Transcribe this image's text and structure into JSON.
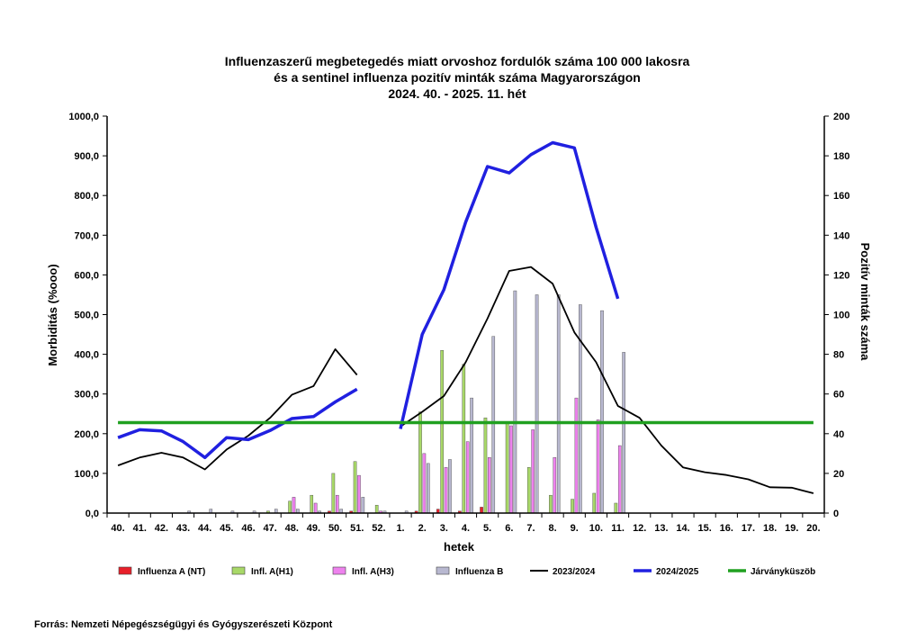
{
  "source": "Forrás: Nemzeti Népegészségügyi és Gyógyszerészeti Központ",
  "colors": {
    "flu_a_nt": "#e8202a",
    "h1": "#a8d868",
    "h3": "#ee82ee",
    "flu_b": "#b8b8d0",
    "s2023": "#000000",
    "s2024": "#2020e0",
    "threshold": "#20a020"
  },
  "chart_data": {
    "type": "bar+line",
    "title_lines": [
      "Influenzaszerű megbetegedés miatt orvoshoz fordulók száma 100 000 lakosra",
      "és a sentinel influenza pozitív minták száma Magyarországon",
      "2024. 40. - 2025. 11. hét"
    ],
    "xlabel": "hetek",
    "ylabel": "Morbiditás (%ooo)",
    "y2label": "Pozitív minták száma",
    "ylim": [
      0,
      1000
    ],
    "y2lim": [
      0,
      200
    ],
    "yticks": [
      "0,0",
      "100,0",
      "200,0",
      "300,0",
      "400,0",
      "500,0",
      "600,0",
      "700,0",
      "800,0",
      "900,0",
      "1000,0"
    ],
    "y2ticks": [
      "0",
      "20",
      "40",
      "60",
      "80",
      "100",
      "120",
      "140",
      "160",
      "180",
      "200"
    ],
    "categories": [
      "40.",
      "41.",
      "42.",
      "43.",
      "44.",
      "45.",
      "46.",
      "47.",
      "48.",
      "49.",
      "50.",
      "51.",
      "52.",
      "1.",
      "2.",
      "3.",
      "4.",
      "5.",
      "6.",
      "7.",
      "8.",
      "9.",
      "10.",
      "11.",
      "12.",
      "13.",
      "14.",
      "15.",
      "16.",
      "17.",
      "18.",
      "19.",
      "20."
    ],
    "bar_series": [
      {
        "key": "flu_a_nt",
        "name": "Influenza A (NT)",
        "values": [
          0,
          0,
          0,
          0,
          0,
          0,
          0,
          0,
          0,
          0,
          1,
          1,
          0,
          0,
          1,
          2,
          1,
          3,
          0,
          0,
          0,
          0,
          0,
          0,
          null,
          null,
          null,
          null,
          null,
          null,
          null,
          null,
          null
        ]
      },
      {
        "key": "h1",
        "name": "Infl. A(H1)",
        "values": [
          0,
          0,
          0,
          0,
          0,
          0,
          0,
          1,
          6,
          9,
          20,
          26,
          4,
          0,
          51,
          82,
          75,
          48,
          45,
          23,
          9,
          7,
          10,
          5,
          null,
          null,
          null,
          null,
          null,
          null,
          null,
          null,
          null
        ]
      },
      {
        "key": "h3",
        "name": "Infl. A(H3)",
        "values": [
          0,
          0,
          0,
          0,
          0,
          0,
          0,
          0,
          8,
          5,
          9,
          19,
          1,
          0,
          30,
          23,
          36,
          28,
          44,
          42,
          28,
          58,
          47,
          34,
          null,
          null,
          null,
          null,
          null,
          null,
          null,
          null,
          null
        ]
      },
      {
        "key": "flu_b",
        "name": "Influenza B",
        "values": [
          0,
          0,
          0,
          1,
          2,
          1,
          1,
          2,
          2,
          1,
          2,
          8,
          1,
          1,
          25,
          27,
          58,
          89,
          112,
          110,
          110,
          105,
          102,
          81,
          null,
          null,
          null,
          null,
          null,
          null,
          null,
          null,
          null
        ]
      }
    ],
    "line_series": [
      {
        "key": "s2023",
        "name": "2023/2024",
        "values": [
          120,
          140,
          152,
          140,
          110,
          160,
          195,
          240,
          298,
          320,
          413,
          348,
          null,
          218,
          255,
          295,
          380,
          490,
          610,
          620,
          578,
          455,
          380,
          270,
          240,
          170,
          115,
          103,
          96,
          85,
          65,
          64,
          50
        ]
      },
      {
        "key": "s2024",
        "name": "2024/2025",
        "values": [
          190,
          210,
          207,
          180,
          140,
          190,
          185,
          208,
          238,
          243,
          280,
          312,
          null,
          212,
          450,
          563,
          733,
          873,
          857,
          903,
          933,
          920,
          720,
          540,
          null,
          null,
          null,
          null,
          null,
          null,
          null,
          null,
          null
        ]
      },
      {
        "key": "threshold",
        "name": "Járványküszöb",
        "constant": 228
      }
    ],
    "legend": [
      {
        "key": "flu_a_nt",
        "label": "Influenza A (NT)",
        "kind": "box"
      },
      {
        "key": "h1",
        "label": "Infl. A(H1)",
        "kind": "box"
      },
      {
        "key": "h3",
        "label": "Infl. A(H3)",
        "kind": "box"
      },
      {
        "key": "flu_b",
        "label": "Influenza B",
        "kind": "box"
      },
      {
        "key": "s2023",
        "label": "2023/2024",
        "kind": "line"
      },
      {
        "key": "s2024",
        "label": "2024/2025",
        "kind": "line"
      },
      {
        "key": "threshold",
        "label": "Járványküszöb",
        "kind": "line"
      }
    ]
  }
}
